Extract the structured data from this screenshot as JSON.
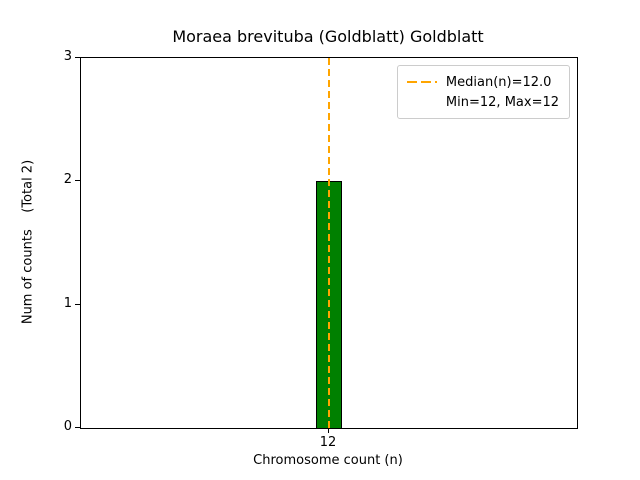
{
  "chart_data": {
    "type": "bar",
    "title": "Moraea brevituba (Goldblatt) Goldblatt",
    "xlabel": "Chromosome count (n)",
    "ylabel": "Num of counts    (Total 2)",
    "categories": [
      "12"
    ],
    "values": [
      2
    ],
    "ylim": [
      0,
      3
    ],
    "yticks": [
      "3",
      "2",
      "1",
      "0"
    ],
    "xticks": [
      "12"
    ],
    "bar_color": "#008000",
    "bar_edge_color": "#000000",
    "median_line_color": "#FFA500",
    "median": 12.0,
    "min": 12,
    "max": 12,
    "legend": {
      "position": "upper right",
      "entries": [
        "Median(n)=12.0",
        "Min=12, Max=12"
      ]
    },
    "grid": "off"
  }
}
